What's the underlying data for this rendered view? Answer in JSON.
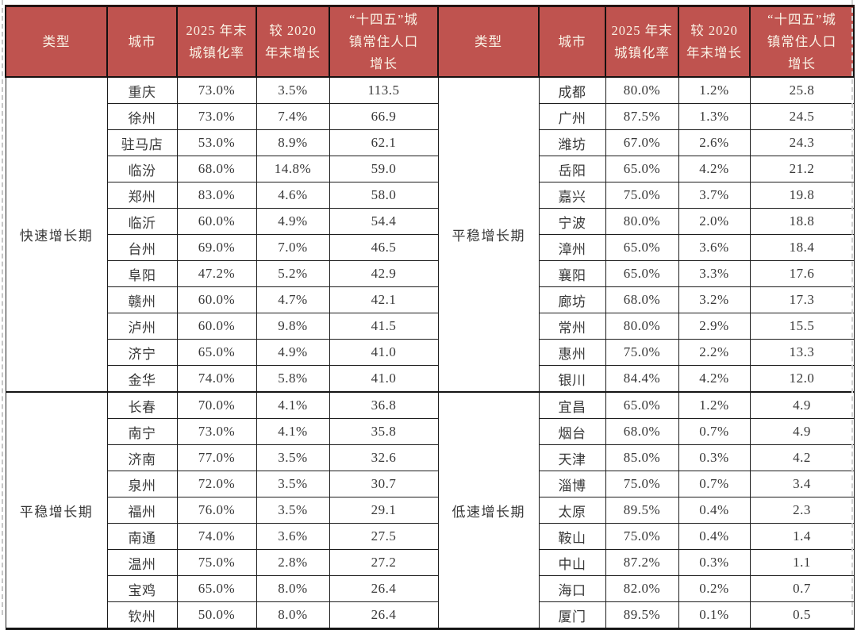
{
  "palette": {
    "header_bg": "#BF534F",
    "header_text": "#FAF3E6",
    "body_text": "#383838",
    "border": "#1C1C1C"
  },
  "columns": [
    "类型",
    "城市",
    "2025 年末\n城镇化率",
    "较 2020\n年末增长",
    "“十四五”城\n镇常住人口\n增长"
  ],
  "tables": [
    {
      "sections": [
        {
          "type": "快速增长期",
          "rows": [
            [
              "重庆",
              "73.0%",
              "3.5%",
              "113.5"
            ],
            [
              "徐州",
              "73.0%",
              "7.4%",
              "66.9"
            ],
            [
              "驻马店",
              "53.0%",
              "8.9%",
              "62.1"
            ],
            [
              "临汾",
              "68.0%",
              "14.8%",
              "59.0"
            ],
            [
              "郑州",
              "83.0%",
              "4.6%",
              "58.0"
            ],
            [
              "临沂",
              "60.0%",
              "4.9%",
              "54.4"
            ],
            [
              "台州",
              "69.0%",
              "7.0%",
              "46.5"
            ],
            [
              "阜阳",
              "47.2%",
              "5.2%",
              "42.9"
            ],
            [
              "赣州",
              "60.0%",
              "4.7%",
              "42.1"
            ],
            [
              "泸州",
              "60.0%",
              "9.8%",
              "41.5"
            ],
            [
              "济宁",
              "65.0%",
              "4.9%",
              "41.0"
            ],
            [
              "金华",
              "74.0%",
              "5.8%",
              "41.0"
            ]
          ]
        },
        {
          "type": "平稳增长期",
          "rows": [
            [
              "长春",
              "70.0%",
              "4.1%",
              "36.8"
            ],
            [
              "南宁",
              "73.0%",
              "4.1%",
              "35.8"
            ],
            [
              "济南",
              "77.0%",
              "3.5%",
              "32.6"
            ],
            [
              "泉州",
              "72.0%",
              "3.5%",
              "30.7"
            ],
            [
              "福州",
              "76.0%",
              "3.5%",
              "29.1"
            ],
            [
              "南通",
              "74.0%",
              "3.6%",
              "27.5"
            ],
            [
              "温州",
              "75.0%",
              "2.8%",
              "27.2"
            ],
            [
              "宝鸡",
              "65.0%",
              "8.0%",
              "26.4"
            ],
            [
              "钦州",
              "50.0%",
              "8.0%",
              "26.4"
            ]
          ]
        }
      ]
    },
    {
      "sections": [
        {
          "type": "平稳增长期",
          "rows": [
            [
              "成都",
              "80.0%",
              "1.2%",
              "25.8"
            ],
            [
              "广州",
              "87.5%",
              "1.3%",
              "24.5"
            ],
            [
              "潍坊",
              "67.0%",
              "2.6%",
              "24.3"
            ],
            [
              "岳阳",
              "65.0%",
              "4.2%",
              "21.2"
            ],
            [
              "嘉兴",
              "75.0%",
              "3.7%",
              "19.8"
            ],
            [
              "宁波",
              "80.0%",
              "2.0%",
              "18.8"
            ],
            [
              "漳州",
              "65.0%",
              "3.6%",
              "18.4"
            ],
            [
              "襄阳",
              "65.0%",
              "3.3%",
              "17.6"
            ],
            [
              "廊坊",
              "68.0%",
              "3.2%",
              "17.3"
            ],
            [
              "常州",
              "80.0%",
              "2.9%",
              "15.5"
            ],
            [
              "惠州",
              "75.0%",
              "2.2%",
              "13.3"
            ],
            [
              "银川",
              "84.4%",
              "4.2%",
              "12.0"
            ]
          ]
        },
        {
          "type": "低速增长期",
          "rows": [
            [
              "宜昌",
              "65.0%",
              "1.2%",
              "4.9"
            ],
            [
              "烟台",
              "68.0%",
              "0.7%",
              "4.9"
            ],
            [
              "天津",
              "85.0%",
              "0.3%",
              "4.2"
            ],
            [
              "淄博",
              "75.0%",
              "0.7%",
              "3.4"
            ],
            [
              "太原",
              "89.5%",
              "0.4%",
              "2.3"
            ],
            [
              "鞍山",
              "75.0%",
              "0.4%",
              "1.4"
            ],
            [
              "中山",
              "87.2%",
              "0.3%",
              "1.1"
            ],
            [
              "海口",
              "82.0%",
              "0.2%",
              "0.7"
            ],
            [
              "厦门",
              "89.5%",
              "0.1%",
              "0.5"
            ]
          ]
        }
      ]
    }
  ]
}
